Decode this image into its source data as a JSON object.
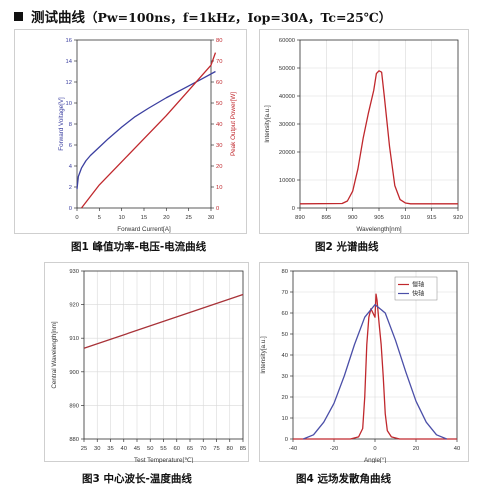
{
  "page": {
    "title": "测试曲线",
    "params": "（Pw=100ns，f=1kHz，Iop=30A，Tc=25℃）",
    "captions": [
      "图1 峰值功率-电压-电流曲线",
      "图2 光谱曲线",
      "图3 中心波长-温度曲线",
      "图4 远场发散角曲线"
    ]
  },
  "chart_data": [
    {
      "type": "line",
      "xlabel": "Forward Current[A]",
      "ylabel": "Forward Voltage[V]",
      "y2label": "Peak Output Power[W]",
      "xlim": [
        0,
        30
      ],
      "ylim": [
        0,
        16
      ],
      "y2lim": [
        0,
        80
      ],
      "xticks": [
        "0",
        "5",
        "10",
        "15",
        "20",
        "25",
        "30"
      ],
      "yticks": [
        "0",
        "2",
        "4",
        "6",
        "8",
        "10",
        "12",
        "14",
        "16"
      ],
      "y2ticks": [
        "0",
        "10",
        "20",
        "30",
        "40",
        "50",
        "60",
        "70",
        "80"
      ],
      "grid": false,
      "series": [
        {
          "axis": "left",
          "color": "#3b3fa0",
          "x": [
            0,
            0.3,
            1,
            2,
            3,
            5,
            7,
            10,
            13,
            16,
            20,
            24,
            28,
            31
          ],
          "y": [
            1.8,
            3.0,
            3.8,
            4.5,
            5.0,
            5.8,
            6.6,
            7.7,
            8.7,
            9.5,
            10.5,
            11.4,
            12.3,
            13.0
          ]
        },
        {
          "axis": "right",
          "color": "#c0282d",
          "x": [
            1,
            5,
            10,
            15,
            20,
            25,
            30,
            31
          ],
          "y": [
            0,
            11,
            22,
            33,
            44,
            56,
            68,
            74
          ]
        }
      ]
    },
    {
      "type": "line",
      "xlabel": "Wavelength[nm]",
      "ylabel": "Intensity[a.u.]",
      "xlim": [
        890,
        920
      ],
      "ylim": [
        0,
        60000
      ],
      "xticks": [
        "890",
        "895",
        "900",
        "905",
        "910",
        "915",
        "920"
      ],
      "yticks": [
        "0",
        "10000",
        "20000",
        "30000",
        "40000",
        "50000",
        "60000"
      ],
      "grid": true,
      "series": [
        {
          "color": "#c0282d",
          "x": [
            890,
            898,
            899,
            900,
            901,
            902,
            903,
            904,
            904.5,
            905,
            905.5,
            906,
            907,
            908,
            909,
            910,
            911,
            920
          ],
          "y": [
            1500,
            1600,
            2500,
            6000,
            14000,
            25000,
            34000,
            42000,
            48000,
            49000,
            48500,
            40000,
            22000,
            8000,
            3000,
            1800,
            1500,
            1500
          ]
        }
      ]
    },
    {
      "type": "line",
      "xlabel": "Test Temperature[℃]",
      "ylabel": "Central Wavelength[nm]",
      "xlim": [
        25,
        85
      ],
      "ylim": [
        880,
        930
      ],
      "xticks": [
        "25",
        "30",
        "35",
        "40",
        "45",
        "50",
        "55",
        "60",
        "65",
        "70",
        "75",
        "80",
        "85"
      ],
      "yticks": [
        "880",
        "890",
        "900",
        "910",
        "920",
        "930"
      ],
      "grid": true,
      "series": [
        {
          "color": "#a83238",
          "x": [
            25,
            85
          ],
          "y": [
            907,
            923
          ]
        }
      ]
    },
    {
      "type": "line",
      "xlabel": "Angle[°]",
      "ylabel": "Intensity[a.u.]",
      "xlim": [
        -40,
        40
      ],
      "ylim": [
        0,
        80
      ],
      "xticks": [
        "-40",
        "-20",
        "0",
        "20",
        "40"
      ],
      "yticks": [
        "0",
        "10",
        "20",
        "30",
        "40",
        "50",
        "60",
        "70",
        "80"
      ],
      "grid": true,
      "legend": "top-right",
      "series": [
        {
          "name": "慢轴",
          "color": "#c0282d",
          "x": [
            -40,
            -12,
            -8,
            -6,
            -5,
            -4,
            -3,
            -2,
            -1,
            0,
            0.5,
            1,
            2,
            3,
            4,
            5,
            6,
            8,
            12,
            40
          ],
          "y": [
            0,
            0,
            1,
            5,
            20,
            45,
            58,
            62,
            60,
            58,
            69,
            66,
            55,
            45,
            30,
            12,
            4,
            1,
            0,
            0
          ]
        },
        {
          "name": "快轴",
          "color": "#4b4fa8",
          "x": [
            -35,
            -30,
            -25,
            -20,
            -15,
            -10,
            -5,
            0,
            5,
            10,
            15,
            20,
            25,
            30,
            35
          ],
          "y": [
            0,
            2,
            8,
            17,
            30,
            45,
            58,
            64,
            60,
            47,
            32,
            18,
            8,
            2,
            0
          ]
        }
      ]
    }
  ]
}
